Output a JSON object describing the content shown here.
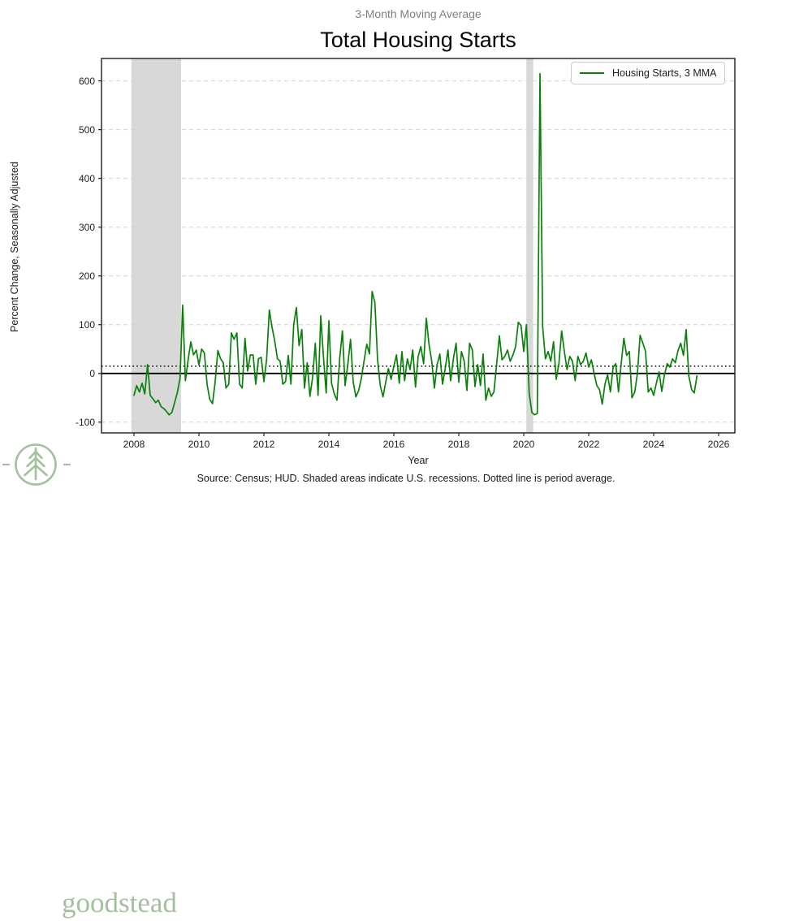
{
  "page": {
    "subtitle": "3-Month Moving Average",
    "title": "Total Housing Starts",
    "source_note": "Source: Census; HUD. Shaded areas indicate U.S. recessions. Dotted line is period average.",
    "logo_text": "goodstead"
  },
  "colors": {
    "line": "#0a800a",
    "recession_band": "#d8d8d8",
    "gridline": "#d2d2d2",
    "zero_line": "#000000",
    "average_line": "#1a1a1a",
    "spine": "#1c1c1c",
    "logo_green": "#a4c19e",
    "subtitle_gray": "#7f7f7f"
  },
  "chart_data": {
    "type": "line",
    "title": "Total Housing Starts",
    "subtitle": "3-Month Moving Average",
    "xlabel": "Year",
    "ylabel": "Percent Change, Seasonally Adjusted",
    "legend_position": "upper right",
    "grid": "horizontal dashed",
    "x_ticks": [
      2008,
      2010,
      2012,
      2014,
      2016,
      2018,
      2020,
      2022,
      2024,
      2026
    ],
    "y_ticks": [
      -100,
      0,
      100,
      200,
      300,
      400,
      500,
      600
    ],
    "xlim": [
      2007.0,
      2026.5
    ],
    "ylim": [
      -122,
      646
    ],
    "period_average": 15,
    "recessions": [
      {
        "start": 2007.92,
        "end": 2009.45
      },
      {
        "start": 2020.08,
        "end": 2020.29
      }
    ],
    "series": [
      {
        "name": "Housing Starts, 3 MMA",
        "color": "#0a800a",
        "start_year": 2008,
        "frequency": "monthly",
        "values": [
          -45,
          -25,
          -38,
          -20,
          -42,
          18,
          -45,
          -52,
          -60,
          -55,
          -68,
          -72,
          -78,
          -85,
          -80,
          -60,
          -40,
          -10,
          140,
          -15,
          28,
          65,
          38,
          48,
          17,
          50,
          42,
          -22,
          -53,
          -62,
          -17,
          47,
          30,
          22,
          -30,
          -22,
          83,
          70,
          83,
          -22,
          -30,
          72,
          5,
          38,
          38,
          -22,
          30,
          33,
          -17,
          28,
          130,
          95,
          67,
          30,
          25,
          -22,
          -17,
          37,
          -22,
          100,
          135,
          57,
          90,
          -30,
          22,
          -47,
          -8,
          62,
          -45,
          118,
          35,
          -40,
          108,
          -20,
          -42,
          -55,
          30,
          87,
          -25,
          18,
          70,
          -18,
          -48,
          -35,
          -10,
          25,
          60,
          40,
          168,
          145,
          28,
          -25,
          -48,
          -18,
          10,
          -12,
          15,
          38,
          -20,
          45,
          -15,
          30,
          8,
          48,
          -28,
          35,
          55,
          20,
          113,
          60,
          25,
          -30,
          18,
          40,
          -22,
          10,
          48,
          -15,
          30,
          62,
          -18,
          45,
          25,
          -35,
          62,
          48,
          -27,
          18,
          -25,
          40,
          -55,
          -30,
          -47,
          -38,
          20,
          77,
          28,
          35,
          48,
          25,
          38,
          55,
          105,
          98,
          45,
          100,
          -40,
          -80,
          -85,
          -82,
          615,
          95,
          30,
          45,
          25,
          65,
          -12,
          20,
          87,
          45,
          8,
          35,
          25,
          -15,
          35,
          18,
          25,
          42,
          13,
          28,
          0,
          -25,
          -33,
          -63,
          -22,
          -3,
          -38,
          12,
          20,
          -38,
          20,
          72,
          37,
          45,
          -50,
          -38,
          0,
          78,
          62,
          45,
          -38,
          -30,
          -45,
          -20,
          3,
          -37,
          -3,
          20,
          13,
          30,
          22,
          47,
          62,
          37,
          90,
          -5,
          -33,
          -40,
          -5
        ]
      }
    ]
  }
}
